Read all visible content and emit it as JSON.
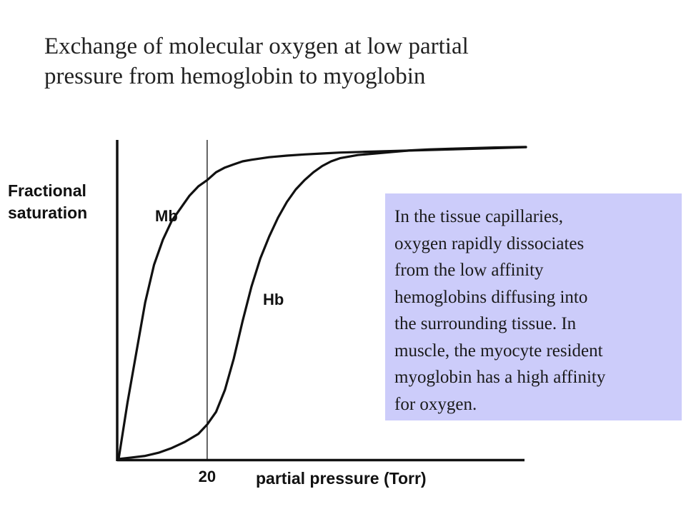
{
  "slide": {
    "title_lines": [
      "Exchange of molecular oxygen at low partial",
      "pressure from hemoglobin to myoglobin"
    ]
  },
  "chart_data": {
    "type": "line",
    "ylabel_lines": [
      "Fractional",
      "saturation"
    ],
    "xlabel": "partial pressure (Torr)",
    "x_ticks": [
      20
    ],
    "xlim": [
      0,
      92
    ],
    "ylim": [
      0,
      1
    ],
    "marker_x": 20,
    "series": [
      {
        "name": "Mb",
        "x": [
          0,
          1,
          2,
          4,
          6,
          8,
          10,
          12,
          14,
          16,
          18,
          20,
          22,
          24,
          26,
          28,
          30,
          34,
          38,
          42,
          46,
          50,
          55,
          60,
          65,
          70,
          75,
          80,
          85,
          92
        ],
        "y": [
          0,
          0.09,
          0.18,
          0.34,
          0.5,
          0.62,
          0.7,
          0.76,
          0.8,
          0.84,
          0.87,
          0.89,
          0.915,
          0.93,
          0.94,
          0.95,
          0.955,
          0.963,
          0.968,
          0.972,
          0.975,
          0.978,
          0.98,
          0.982,
          0.984,
          0.986,
          0.988,
          0.99,
          0.992,
          0.995
        ]
      },
      {
        "name": "Hb",
        "x": [
          0,
          3,
          6,
          9,
          12,
          15,
          18,
          20,
          22,
          24,
          26,
          28,
          30,
          32,
          34,
          36,
          38,
          40,
          42,
          44,
          46,
          48,
          50,
          54,
          58,
          62,
          66,
          70,
          75,
          80,
          85,
          92
        ],
        "y": [
          0,
          0.005,
          0.01,
          0.02,
          0.035,
          0.055,
          0.08,
          0.11,
          0.15,
          0.22,
          0.32,
          0.44,
          0.55,
          0.64,
          0.71,
          0.77,
          0.82,
          0.86,
          0.89,
          0.915,
          0.935,
          0.95,
          0.96,
          0.97,
          0.975,
          0.98,
          0.985,
          0.988,
          0.99,
          0.992,
          0.994,
          0.996
        ]
      }
    ]
  },
  "info_box": {
    "lines": [
      "In the tissue capillaries,",
      "oxygen rapidly dissociates",
      "from the low affinity",
      "hemoglobins diffusing into",
      "the surrounding tissue. In",
      "muscle, the myocyte resident",
      "myoglobin has a high affinity",
      "for oxygen."
    ]
  }
}
